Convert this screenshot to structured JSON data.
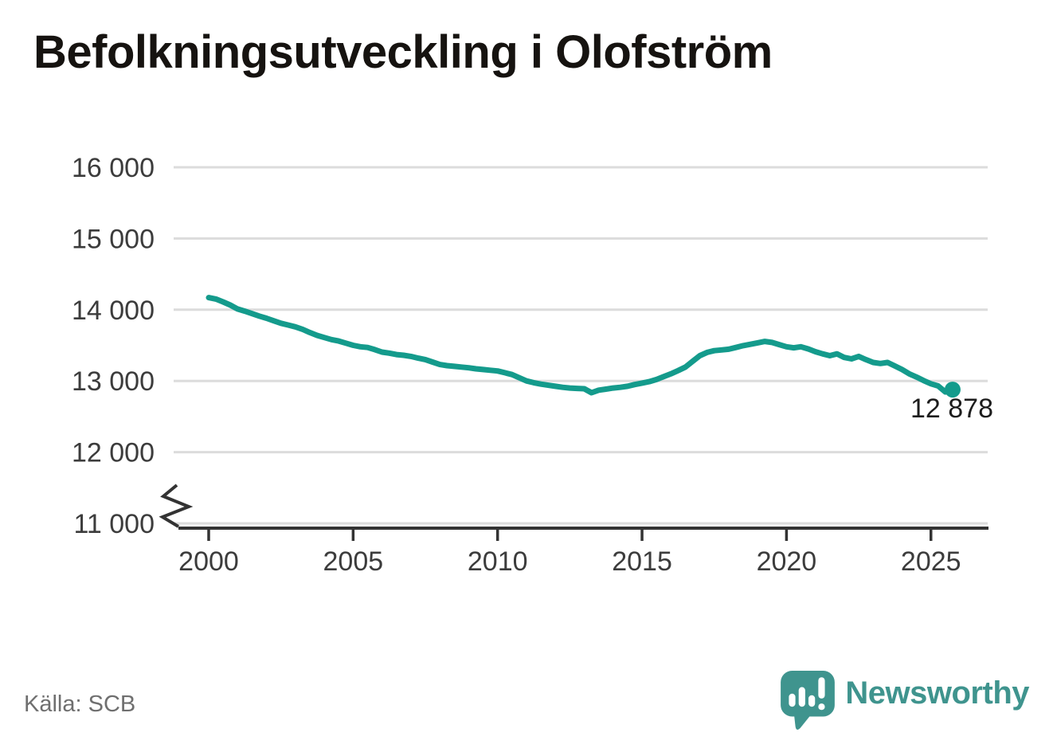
{
  "title": "Befolkningsutveckling i Olofström",
  "source": "Källa: SCB",
  "logo": {
    "text": "Newsworthy"
  },
  "colors": {
    "background": "#ffffff",
    "line": "#149b8c",
    "grid": "#dcdcdc",
    "axis": "#333333",
    "axis_text": "#3c3c3c",
    "title_text": "#161310",
    "source_text": "#6f6f6f",
    "label_text": "#1d1d1d",
    "logo": "#3f948e"
  },
  "chart_data": {
    "type": "line",
    "title": "Befolkningsutveckling i Olofström",
    "xlabel": "",
    "ylabel": "",
    "xlim": [
      1999.5,
      2027
    ],
    "ylim": [
      11000,
      16000
    ],
    "grid": "horizontal",
    "axis_break": true,
    "legend": "none",
    "x_ticks": [
      2000,
      2005,
      2010,
      2015,
      2020,
      2025
    ],
    "x_tick_labels": [
      "2000",
      "2005",
      "2010",
      "2015",
      "2020",
      "2025"
    ],
    "y_ticks": [
      11000,
      12000,
      13000,
      14000,
      15000,
      16000
    ],
    "y_tick_labels": [
      "11 000",
      "12 000",
      "13 000",
      "14 000",
      "15 000",
      "16 000"
    ],
    "end_value": 12878,
    "end_label": "12 878",
    "x": [
      2000,
      2000.25,
      2000.5,
      2000.75,
      2001,
      2001.25,
      2001.5,
      2001.75,
      2002,
      2002.25,
      2002.5,
      2002.75,
      2003,
      2003.25,
      2003.5,
      2003.75,
      2004,
      2004.25,
      2004.5,
      2004.75,
      2005,
      2005.25,
      2005.5,
      2005.75,
      2006,
      2006.25,
      2006.5,
      2006.75,
      2007,
      2007.25,
      2007.5,
      2007.75,
      2008,
      2008.25,
      2008.5,
      2008.75,
      2009,
      2009.25,
      2009.5,
      2009.75,
      2010,
      2010.25,
      2010.5,
      2010.75,
      2011,
      2011.25,
      2011.5,
      2011.75,
      2012,
      2012.25,
      2012.5,
      2012.75,
      2013,
      2013.25,
      2013.5,
      2013.75,
      2014,
      2014.25,
      2014.5,
      2014.75,
      2015,
      2015.25,
      2015.5,
      2015.75,
      2016,
      2016.25,
      2016.5,
      2016.75,
      2017,
      2017.25,
      2017.5,
      2017.75,
      2018,
      2018.25,
      2018.5,
      2018.75,
      2019,
      2019.25,
      2019.5,
      2019.75,
      2020,
      2020.25,
      2020.5,
      2020.75,
      2021,
      2021.25,
      2021.5,
      2021.75,
      2022,
      2022.25,
      2022.5,
      2022.75,
      2023,
      2023.25,
      2023.5,
      2023.75,
      2024,
      2024.25,
      2024.5,
      2024.75,
      2025,
      2025.25,
      2025.5,
      2025.75
    ],
    "y": [
      14170,
      14150,
      14110,
      14065,
      14010,
      13980,
      13945,
      13910,
      13880,
      13845,
      13810,
      13785,
      13760,
      13725,
      13680,
      13640,
      13610,
      13580,
      13560,
      13530,
      13500,
      13480,
      13470,
      13440,
      13405,
      13390,
      13370,
      13360,
      13345,
      13320,
      13300,
      13265,
      13230,
      13215,
      13205,
      13195,
      13185,
      13170,
      13160,
      13150,
      13140,
      13115,
      13090,
      13045,
      13000,
      12975,
      12955,
      12940,
      12925,
      12910,
      12900,
      12895,
      12890,
      12835,
      12870,
      12885,
      12900,
      12910,
      12925,
      12950,
      12970,
      12990,
      13020,
      13060,
      13100,
      13145,
      13195,
      13275,
      13355,
      13400,
      13425,
      13435,
      13445,
      13470,
      13495,
      13515,
      13535,
      13555,
      13540,
      13510,
      13480,
      13465,
      13480,
      13450,
      13410,
      13380,
      13355,
      13380,
      13330,
      13310,
      13345,
      13300,
      13260,
      13245,
      13260,
      13210,
      13160,
      13100,
      13055,
      13005,
      12960,
      12930,
      12845,
      12878
    ]
  }
}
